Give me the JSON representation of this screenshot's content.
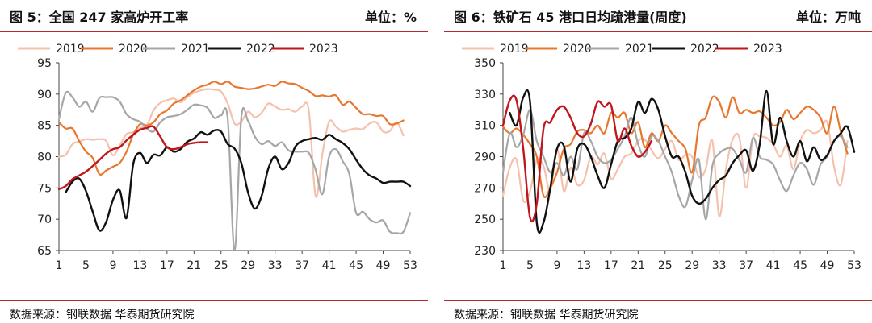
{
  "left_panel": {
    "title": "图 5：全国 247 家高炉开工率",
    "unit": "单位：%",
    "source": "数据来源：钢联数据  华泰期货研究院"
  },
  "right_panel": {
    "title": "图 6：铁矿石 45 港口日均疏港量(周度)",
    "unit": "单位：万吨",
    "source": "数据来源：钢联数据  华泰期货研究院"
  },
  "chart_data": [
    {
      "type": "line",
      "title": "",
      "xlabel": "",
      "ylabel": "",
      "ylim": [
        65,
        95
      ],
      "yticks": [
        65,
        70,
        75,
        80,
        85,
        90,
        95
      ],
      "xlim": [
        1,
        53
      ],
      "xticks": [
        1,
        5,
        9,
        13,
        17,
        21,
        25,
        29,
        33,
        37,
        41,
        45,
        49,
        53
      ],
      "grid": false,
      "legend": "top",
      "series": [
        {
          "name": "2019",
          "color": "#f5c1ad",
          "x": [
            1,
            2,
            3,
            4,
            5,
            6,
            7,
            8,
            9,
            10,
            11,
            12,
            13,
            14,
            15,
            16,
            17,
            18,
            19,
            20,
            21,
            22,
            23,
            24,
            25,
            26,
            27,
            28,
            29,
            30,
            31,
            32,
            33,
            34,
            35,
            36,
            37,
            38,
            39,
            40,
            41,
            42,
            43,
            44,
            45,
            46,
            47,
            48,
            49,
            50,
            51,
            52
          ],
          "values": [
            80.0,
            80.3,
            82.0,
            82.4,
            82.8,
            82.7,
            82.8,
            82.5,
            80.2,
            81.8,
            83.6,
            83.9,
            84.6,
            85.0,
            87.4,
            88.6,
            89.0,
            89.3,
            88.7,
            89.5,
            90.2,
            90.6,
            90.8,
            90.7,
            90.4,
            88.5,
            85.3,
            85.6,
            87.2,
            86.3,
            87.0,
            88.5,
            88.0,
            87.5,
            87.6,
            87.2,
            88.0,
            87.4,
            73.7,
            80.4,
            85.6,
            84.8,
            84.0,
            84.3,
            84.5,
            84.4,
            85.3,
            85.5,
            84.0,
            84.1,
            85.5,
            83.4
          ]
        },
        {
          "name": "2020",
          "color": "#e8772e",
          "x": [
            1,
            2,
            3,
            4,
            5,
            6,
            7,
            8,
            9,
            10,
            11,
            12,
            13,
            14,
            15,
            16,
            17,
            18,
            19,
            20,
            21,
            22,
            23,
            24,
            25,
            26,
            27,
            28,
            29,
            30,
            31,
            32,
            33,
            34,
            35,
            36,
            37,
            38,
            39,
            40,
            41,
            42,
            43,
            44,
            45,
            46,
            47,
            48,
            49,
            50,
            51,
            52
          ],
          "values": [
            85.5,
            84.5,
            84.5,
            82.5,
            80.8,
            79.8,
            77.2,
            77.8,
            78.4,
            79.0,
            80.8,
            83.5,
            85.2,
            85.0,
            85.5,
            86.8,
            87.4,
            88.5,
            89.0,
            89.8,
            90.6,
            91.2,
            91.5,
            92.0,
            91.6,
            92.0,
            91.2,
            91.0,
            90.8,
            90.9,
            91.2,
            91.5,
            91.3,
            92.0,
            91.7,
            91.6,
            91.0,
            90.5,
            89.7,
            89.8,
            89.6,
            89.8,
            88.3,
            88.8,
            87.8,
            86.8,
            86.8,
            86.5,
            86.5,
            85.2,
            85.3,
            85.8
          ]
        },
        {
          "name": "2021",
          "color": "#a6a6a6",
          "x": [
            1,
            2,
            3,
            4,
            5,
            6,
            7,
            8,
            9,
            10,
            11,
            12,
            13,
            14,
            15,
            16,
            17,
            18,
            19,
            20,
            21,
            22,
            23,
            24,
            25,
            26,
            27,
            28,
            29,
            30,
            31,
            32,
            33,
            34,
            35,
            36,
            37,
            38,
            39,
            40,
            41,
            42,
            43,
            44,
            45,
            46,
            47,
            48,
            49,
            50,
            51,
            52,
            53
          ],
          "values": [
            86.0,
            90.2,
            89.5,
            88.0,
            88.8,
            87.2,
            89.4,
            89.5,
            89.5,
            88.8,
            86.8,
            86.0,
            85.6,
            84.5,
            84.0,
            85.5,
            86.3,
            86.5,
            86.8,
            87.5,
            88.3,
            88.2,
            87.8,
            86.2,
            86.6,
            86.0,
            65.0,
            86.3,
            85.7,
            83.2,
            82.0,
            82.5,
            81.7,
            82.3,
            81.0,
            80.8,
            80.8,
            80.6,
            77.9,
            74.0,
            80.0,
            81.2,
            79.3,
            77.2,
            71.0,
            71.2,
            70.0,
            69.5,
            69.8,
            68.0,
            67.8,
            68.0,
            71.0
          ]
        },
        {
          "name": "2022",
          "color": "#111111",
          "x": [
            2,
            3,
            4,
            5,
            6,
            7,
            8,
            9,
            10,
            11,
            12,
            13,
            14,
            15,
            16,
            17,
            18,
            19,
            20,
            21,
            22,
            23,
            24,
            25,
            26,
            27,
            28,
            29,
            30,
            31,
            32,
            33,
            34,
            35,
            36,
            37,
            38,
            39,
            40,
            41,
            42,
            43,
            44,
            45,
            46,
            47,
            48,
            49,
            50,
            51,
            52,
            53
          ],
          "values": [
            74.3,
            76.0,
            76.5,
            74.5,
            71.2,
            68.2,
            69.6,
            73.1,
            74.6,
            70.2,
            78.8,
            80.6,
            79.0,
            80.3,
            80.2,
            81.5,
            80.8,
            81.2,
            82.4,
            82.9,
            83.9,
            83.5,
            84.2,
            84.0,
            82.0,
            81.3,
            79.0,
            74.3,
            71.7,
            73.7,
            78.1,
            80.0,
            78.0,
            79.0,
            81.6,
            82.5,
            82.8,
            83.0,
            82.7,
            83.5,
            82.8,
            82.2,
            81.2,
            79.5,
            78.0,
            77.0,
            76.5,
            75.8,
            76.0,
            76.0,
            76.0,
            75.3
          ]
        },
        {
          "name": "2023",
          "color": "#c0161c",
          "x": [
            1,
            2,
            3,
            4,
            5,
            6,
            7,
            8,
            9,
            10,
            11,
            12,
            13,
            14,
            15,
            16,
            17,
            18,
            19,
            20,
            21,
            22,
            23
          ],
          "values": [
            74.8,
            75.3,
            76.4,
            77.0,
            77.6,
            78.5,
            79.5,
            80.5,
            81.2,
            81.5,
            82.6,
            83.5,
            84.3,
            84.6,
            84.8,
            83.2,
            81.5,
            81.2,
            81.5,
            82.0,
            82.2,
            82.3,
            82.3
          ]
        }
      ]
    },
    {
      "type": "line",
      "title": "",
      "xlabel": "",
      "ylabel": "",
      "ylim": [
        230,
        350
      ],
      "yticks": [
        230,
        250,
        270,
        290,
        310,
        330,
        350
      ],
      "xlim": [
        1,
        53
      ],
      "xticks": [
        1,
        5,
        9,
        13,
        17,
        21,
        25,
        29,
        33,
        37,
        41,
        45,
        49,
        53
      ],
      "grid": false,
      "legend": "top",
      "series": [
        {
          "name": "2019",
          "color": "#f5c1ad",
          "x": [
            1,
            2,
            3,
            4,
            5,
            6,
            7,
            8,
            9,
            10,
            11,
            12,
            13,
            14,
            15,
            16,
            17,
            18,
            19,
            20,
            21,
            22,
            23,
            24,
            25,
            26,
            27,
            28,
            29,
            30,
            31,
            32,
            33,
            34,
            35,
            36,
            37,
            38,
            39,
            40,
            41,
            42,
            43,
            44,
            45,
            46,
            47,
            48,
            49,
            50,
            51,
            52
          ],
          "values": [
            265,
            283,
            288,
            262,
            268,
            288,
            284,
            268,
            295,
            268,
            283,
            272,
            275,
            290,
            285,
            292,
            276,
            282,
            290,
            292,
            300,
            301,
            294,
            289,
            295,
            300,
            288,
            291,
            290,
            277,
            282,
            300,
            252,
            282,
            301,
            302,
            270,
            302,
            303,
            302,
            298,
            290,
            297,
            282,
            300,
            307,
            305,
            307,
            312,
            284,
            272,
            300
          ]
        },
        {
          "name": "2020",
          "color": "#e8772e",
          "x": [
            1,
            2,
            3,
            4,
            5,
            6,
            7,
            8,
            9,
            10,
            11,
            12,
            13,
            14,
            15,
            16,
            17,
            18,
            19,
            20,
            21,
            22,
            23,
            24,
            25,
            26,
            27,
            28,
            29,
            30,
            31,
            32,
            33,
            34,
            35,
            36,
            37,
            38,
            39,
            40,
            41,
            42,
            43,
            44,
            45,
            46,
            47,
            48,
            49,
            50,
            51,
            52
          ],
          "values": [
            309,
            305,
            308,
            304,
            298,
            290,
            265,
            270,
            280,
            295,
            298,
            306,
            307,
            305,
            310,
            305,
            318,
            315,
            318,
            305,
            312,
            296,
            305,
            300,
            310,
            305,
            300,
            295,
            280,
            310,
            315,
            328,
            325,
            315,
            328,
            318,
            320,
            318,
            319,
            315,
            310,
            312,
            320,
            314,
            318,
            322,
            320,
            315,
            305,
            322,
            306,
            292
          ]
        },
        {
          "name": "2021",
          "color": "#a6a6a6",
          "x": [
            1,
            2,
            3,
            4,
            5,
            6,
            7,
            8,
            9,
            10,
            11,
            12,
            13,
            14,
            15,
            16,
            17,
            18,
            19,
            20,
            21,
            22,
            23,
            24,
            25,
            26,
            27,
            28,
            29,
            30,
            31,
            32,
            33,
            34,
            35,
            36,
            37,
            38,
            39,
            40,
            41,
            42,
            43,
            44,
            45,
            46,
            47,
            48,
            49,
            50,
            51,
            52
          ],
          "values": [
            280,
            305,
            296,
            304,
            320,
            300,
            290,
            280,
            286,
            278,
            290,
            282,
            305,
            300,
            290,
            286,
            288,
            295,
            303,
            315,
            298,
            290,
            303,
            300,
            290,
            280,
            265,
            258,
            275,
            288,
            250,
            284,
            292,
            295,
            295,
            288,
            280,
            302,
            290,
            288,
            285,
            275,
            268,
            278,
            286,
            282,
            272,
            285,
            290,
            300,
            303,
            296
          ]
        },
        {
          "name": "2022",
          "color": "#111111",
          "x": [
            2,
            3,
            4,
            5,
            6,
            7,
            8,
            9,
            10,
            11,
            12,
            13,
            14,
            15,
            16,
            17,
            18,
            19,
            20,
            21,
            22,
            23,
            24,
            25,
            26,
            27,
            28,
            29,
            30,
            31,
            32,
            33,
            34,
            35,
            36,
            37,
            38,
            39,
            40,
            41,
            42,
            43,
            44,
            45,
            46,
            47,
            48,
            49,
            50,
            51,
            52,
            53
          ],
          "values": [
            318,
            310,
            328,
            325,
            248,
            248,
            270,
            295,
            297,
            274,
            295,
            298,
            290,
            278,
            270,
            285,
            300,
            302,
            308,
            325,
            318,
            327,
            320,
            303,
            290,
            290,
            280,
            265,
            260,
            263,
            270,
            275,
            278,
            286,
            291,
            294,
            281,
            298,
            332,
            298,
            315,
            300,
            290,
            300,
            287,
            296,
            288,
            291,
            300,
            305,
            309,
            293
          ]
        },
        {
          "name": "2023",
          "color": "#c0161c",
          "x": [
            1,
            2,
            3,
            4,
            5,
            6,
            7,
            8,
            9,
            10,
            11,
            12,
            13,
            14,
            15,
            16,
            17,
            18,
            19,
            20,
            21,
            22,
            23
          ],
          "values": [
            310,
            326,
            326,
            295,
            251,
            260,
            308,
            312,
            320,
            322,
            315,
            305,
            303,
            311,
            325,
            322,
            323,
            300,
            308,
            297,
            290,
            293,
            300
          ]
        }
      ]
    }
  ]
}
